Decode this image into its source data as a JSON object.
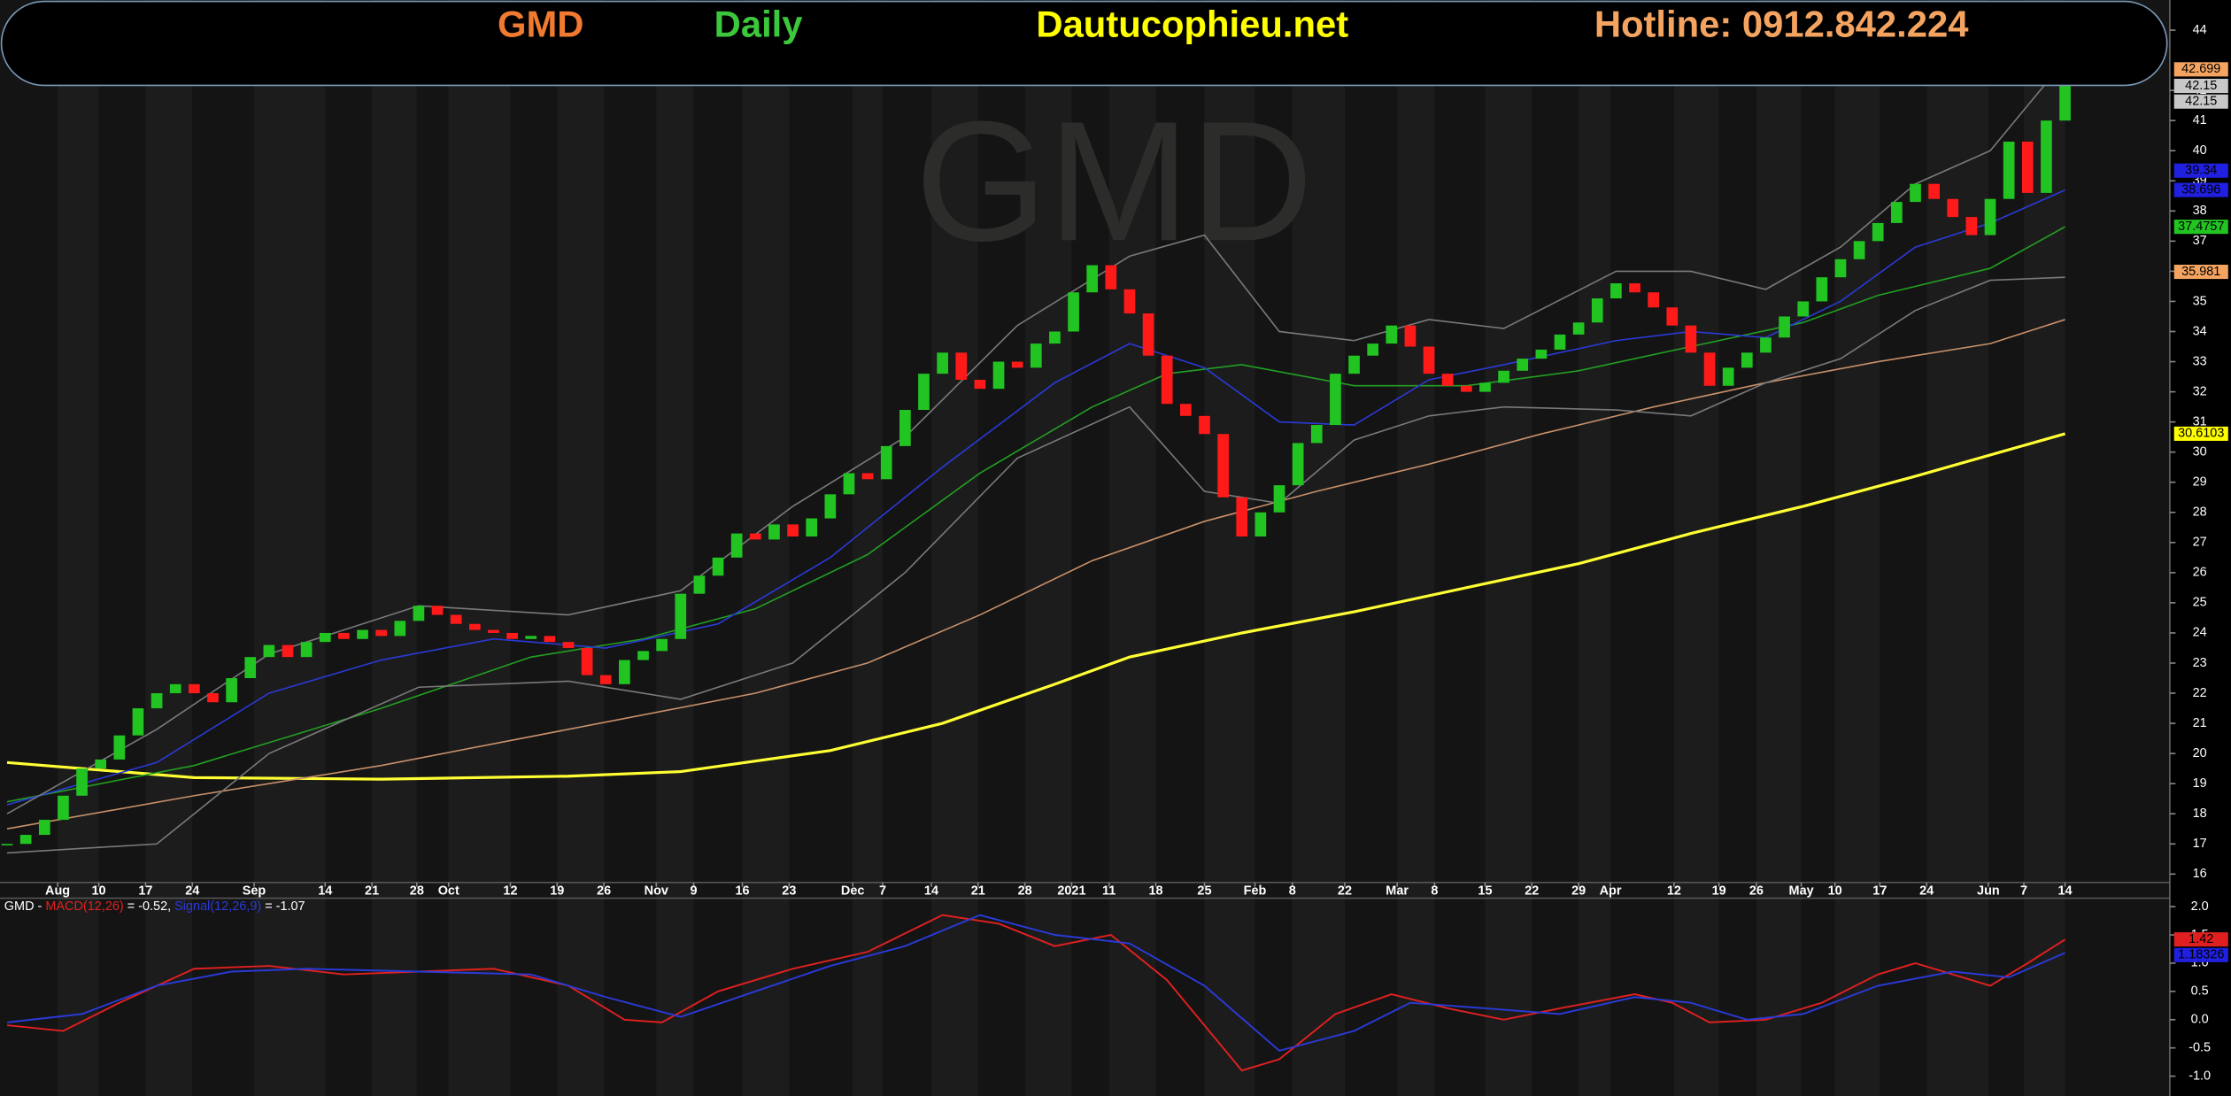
{
  "header": {
    "symbol": "GMD",
    "period": "Daily",
    "site": "Dautucophieu.net",
    "hotline": "Hotline: 0912.842.224"
  },
  "chart_data": [
    {
      "type": "candlestick",
      "watermark": "GMD",
      "up_color": "#22c422",
      "down_color": "#ff1a1a",
      "xlim": [
        -0.38,
        115.6
      ],
      "ylim": [
        15.72,
        45.0
      ],
      "xticks": [
        {
          "value": 2.7,
          "label": "Aug"
        },
        {
          "value": 4.9,
          "label": "10"
        },
        {
          "value": 7.4,
          "label": "17"
        },
        {
          "value": 9.9,
          "label": "24"
        },
        {
          "value": 13.2,
          "label": "Sep"
        },
        {
          "value": 17.0,
          "label": "14"
        },
        {
          "value": 19.5,
          "label": "21"
        },
        {
          "value": 21.9,
          "label": "28"
        },
        {
          "value": 23.6,
          "label": "Oct"
        },
        {
          "value": 26.9,
          "label": "12"
        },
        {
          "value": 29.4,
          "label": "19"
        },
        {
          "value": 31.9,
          "label": "26"
        },
        {
          "value": 34.7,
          "label": "Nov"
        },
        {
          "value": 36.7,
          "label": "9"
        },
        {
          "value": 39.3,
          "label": "16"
        },
        {
          "value": 41.8,
          "label": "23"
        },
        {
          "value": 45.2,
          "label": "Dec"
        },
        {
          "value": 46.8,
          "label": "7"
        },
        {
          "value": 49.4,
          "label": "14"
        },
        {
          "value": 51.9,
          "label": "21"
        },
        {
          "value": 54.4,
          "label": "28"
        },
        {
          "value": 56.9,
          "label": "2021"
        },
        {
          "value": 58.9,
          "label": "11"
        },
        {
          "value": 61.4,
          "label": "18"
        },
        {
          "value": 64.0,
          "label": "25"
        },
        {
          "value": 66.7,
          "label": "Feb"
        },
        {
          "value": 68.7,
          "label": "8"
        },
        {
          "value": 71.5,
          "label": "22"
        },
        {
          "value": 74.3,
          "label": "Mar"
        },
        {
          "value": 76.3,
          "label": "8"
        },
        {
          "value": 79.0,
          "label": "15"
        },
        {
          "value": 81.5,
          "label": "22"
        },
        {
          "value": 84.0,
          "label": "29"
        },
        {
          "value": 85.7,
          "label": "Apr"
        },
        {
          "value": 89.1,
          "label": "12"
        },
        {
          "value": 91.5,
          "label": "19"
        },
        {
          "value": 93.5,
          "label": "26"
        },
        {
          "value": 95.9,
          "label": "May"
        },
        {
          "value": 97.7,
          "label": "10"
        },
        {
          "value": 100.1,
          "label": "17"
        },
        {
          "value": 102.6,
          "label": "24"
        },
        {
          "value": 105.9,
          "label": "Jun"
        },
        {
          "value": 107.8,
          "label": "7"
        },
        {
          "value": 110.0,
          "label": "14"
        }
      ],
      "yticks": [
        16,
        17,
        18,
        19,
        20,
        21,
        22,
        23,
        24,
        25,
        26,
        27,
        28,
        29,
        30,
        31,
        32,
        33,
        34,
        35,
        36,
        37,
        38,
        39,
        40,
        41,
        42,
        44
      ],
      "values": [
        17.0,
        17.3,
        17.8,
        18.6,
        19.5,
        19.8,
        20.6,
        21.5,
        22.0,
        22.3,
        22.0,
        21.7,
        22.5,
        23.2,
        23.6,
        23.2,
        23.7,
        24.0,
        23.8,
        24.1,
        23.9,
        24.4,
        24.9,
        24.6,
        24.3,
        24.1,
        24.0,
        23.8,
        23.9,
        23.7,
        23.5,
        22.6,
        22.3,
        23.1,
        23.4,
        23.8,
        25.3,
        25.9,
        26.5,
        27.3,
        27.1,
        27.6,
        27.2,
        27.8,
        28.6,
        29.3,
        29.1,
        30.2,
        31.4,
        32.6,
        33.3,
        32.4,
        32.1,
        33.0,
        32.8,
        33.6,
        34.0,
        35.3,
        36.2,
        35.4,
        34.6,
        33.2,
        31.6,
        31.2,
        30.6,
        28.5,
        27.2,
        28.0,
        28.9,
        30.3,
        30.9,
        32.6,
        33.2,
        33.6,
        34.2,
        33.5,
        32.6,
        32.2,
        32.0,
        32.3,
        32.7,
        33.1,
        33.4,
        33.9,
        34.3,
        35.1,
        35.6,
        35.3,
        34.8,
        34.2,
        33.3,
        32.2,
        32.8,
        33.3,
        33.8,
        34.5,
        35.0,
        35.8,
        36.4,
        37.0,
        37.6,
        38.3,
        38.9,
        38.4,
        37.8,
        37.2,
        38.4,
        40.3,
        38.6,
        41.0,
        42.15
      ],
      "series": [
        {
          "color": "#ffff33",
          "width": 2,
          "x": [
            0,
            10,
            20,
            30,
            36,
            44,
            50,
            56,
            60,
            66,
            72,
            78,
            84,
            90,
            96,
            102,
            110
          ],
          "values": [
            19.7,
            19.2,
            19.15,
            19.25,
            19.4,
            20.1,
            21.0,
            22.3,
            23.2,
            24.0,
            24.7,
            25.5,
            26.3,
            27.3,
            28.2,
            29.2,
            30.6103
          ]
        },
        {
          "color": "#c8906a",
          "width": 1,
          "x": [
            0,
            10,
            20,
            30,
            40,
            46,
            52,
            58,
            64,
            70,
            76,
            82,
            88,
            94,
            100,
            106,
            110
          ],
          "values": [
            17.5,
            18.6,
            19.6,
            20.8,
            22.0,
            23.0,
            24.6,
            26.4,
            27.7,
            28.7,
            29.6,
            30.6,
            31.5,
            32.3,
            33.0,
            33.6,
            34.4
          ]
        },
        {
          "color": "#22a022",
          "width": 1,
          "x": [
            0,
            10,
            20,
            28,
            34,
            40,
            46,
            52,
            58,
            62,
            66,
            72,
            78,
            84,
            90,
            96,
            100,
            106,
            110
          ],
          "values": [
            18.4,
            19.6,
            21.5,
            23.2,
            23.8,
            24.8,
            26.6,
            29.3,
            31.5,
            32.6,
            32.9,
            32.2,
            32.2,
            32.7,
            33.5,
            34.3,
            35.2,
            36.1,
            37.4757
          ]
        },
        {
          "color": "#2a3ad8",
          "width": 1,
          "x": [
            0,
            8,
            14,
            20,
            26,
            32,
            38,
            44,
            50,
            56,
            60,
            64,
            68,
            72,
            76,
            80,
            86,
            90,
            94,
            98,
            102,
            106,
            110
          ],
          "values": [
            18.3,
            19.7,
            22.0,
            23.1,
            23.8,
            23.5,
            24.3,
            26.5,
            29.5,
            32.3,
            33.6,
            32.8,
            31.0,
            30.9,
            32.4,
            32.9,
            33.7,
            34.0,
            33.8,
            35.0,
            36.8,
            37.6,
            38.696
          ]
        },
        {
          "color": "#7a7a7a",
          "width": 1,
          "x": [
            0,
            8,
            14,
            22,
            30,
            36,
            42,
            48,
            54,
            60,
            64,
            68,
            72,
            76,
            80,
            86,
            90,
            94,
            98,
            102,
            106,
            110
          ],
          "values": [
            18.0,
            20.8,
            23.3,
            24.9,
            24.6,
            25.4,
            28.2,
            30.5,
            34.2,
            36.5,
            37.2,
            34.0,
            33.7,
            34.4,
            34.1,
            36.0,
            36.0,
            35.4,
            36.8,
            38.9,
            40.0,
            43.0
          ]
        },
        {
          "color": "#7a7a7a",
          "width": 1,
          "x": [
            0,
            8,
            14,
            22,
            30,
            36,
            42,
            48,
            54,
            60,
            64,
            68,
            72,
            76,
            80,
            86,
            90,
            94,
            98,
            102,
            106,
            110
          ],
          "values": [
            16.7,
            17.0,
            20.0,
            22.2,
            22.4,
            21.8,
            23.0,
            26.0,
            29.8,
            31.5,
            28.7,
            28.3,
            30.4,
            31.2,
            31.5,
            31.4,
            31.2,
            32.3,
            33.1,
            34.7,
            35.7,
            35.8
          ]
        }
      ],
      "last_value_labels": [
        {
          "value": 42.699,
          "color": "#f4a460"
        },
        {
          "value": 42.15,
          "color": "#c8c8c8"
        },
        {
          "value": 42.15,
          "color": "#c8c8c8"
        },
        {
          "value": 39.34,
          "color": "#2020e0"
        },
        {
          "value": 38.696,
          "color": "#2020e0"
        },
        {
          "value": 37.4757,
          "color": "#22c422"
        },
        {
          "value": 35.981,
          "color": "#f4a460"
        },
        {
          "value": 30.6103,
          "color": "#ffff00"
        }
      ]
    },
    {
      "type": "line",
      "title": "GMD -",
      "xlim": [
        -0.38,
        115.6
      ],
      "ylim": [
        -1.225,
        2.15
      ],
      "yticks": [
        {
          "value": -1,
          "label": "-1.0"
        },
        -0.5,
        {
          "value": 0,
          "label": "0.0"
        },
        0.5,
        {
          "value": 1,
          "label": "1.0"
        },
        1.5,
        {
          "value": 2,
          "label": "2.0"
        }
      ],
      "series": [
        {
          "name": "MACD(12,26)",
          "legend_value": "= -0.52,",
          "color": "#e02020",
          "x": [
            0,
            3,
            6,
            10,
            14,
            18,
            22,
            26,
            30,
            33,
            35,
            38,
            42,
            46,
            50,
            53,
            56,
            59,
            62,
            66,
            68,
            71,
            74,
            77,
            80,
            83,
            87,
            89,
            91,
            94,
            97,
            100,
            102,
            104,
            106,
            108,
            110
          ],
          "values": [
            -0.1,
            -0.2,
            0.3,
            0.9,
            0.95,
            0.8,
            0.85,
            0.9,
            0.6,
            0.0,
            -0.05,
            0.5,
            0.9,
            1.2,
            1.85,
            1.7,
            1.3,
            1.5,
            0.7,
            -0.9,
            -0.7,
            0.1,
            0.45,
            0.2,
            0.0,
            0.2,
            0.45,
            0.3,
            -0.05,
            0.0,
            0.3,
            0.8,
            1.0,
            0.8,
            0.6,
            1.0,
            1.42
          ]
        },
        {
          "name": "Signal(12,26,9)",
          "legend_value": "= -1.07",
          "color": "#2a3ad8",
          "x": [
            0,
            4,
            8,
            12,
            16,
            22,
            28,
            32,
            36,
            40,
            44,
            48,
            52,
            56,
            60,
            64,
            68,
            72,
            75,
            79,
            83,
            87,
            90,
            93,
            96,
            100,
            104,
            107,
            110
          ],
          "values": [
            -0.05,
            0.1,
            0.6,
            0.85,
            0.9,
            0.85,
            0.8,
            0.4,
            0.05,
            0.5,
            0.95,
            1.3,
            1.85,
            1.5,
            1.35,
            0.6,
            -0.55,
            -0.2,
            0.3,
            0.2,
            0.1,
            0.4,
            0.3,
            0.0,
            0.1,
            0.6,
            0.85,
            0.75,
            1.18326
          ]
        }
      ],
      "last_value_labels": [
        {
          "value": 1.42,
          "color": "#e02020"
        },
        {
          "value": 1.18326,
          "color": "#2020e0"
        }
      ]
    }
  ]
}
